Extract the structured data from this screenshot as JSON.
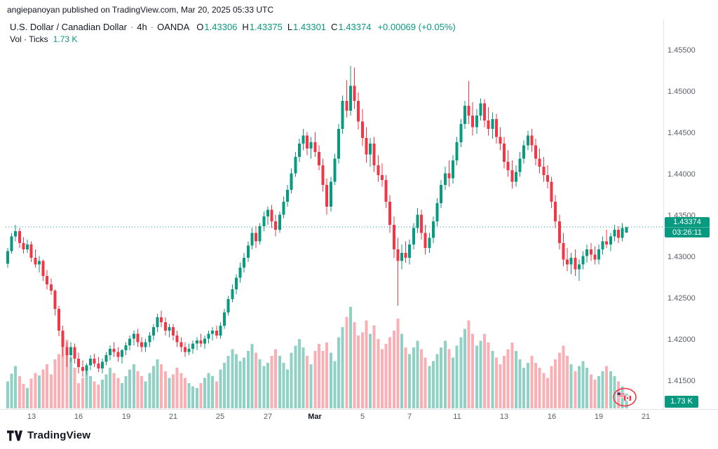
{
  "header": {
    "attribution": "angiepanoyan published on TradingView.com, Mar 20, 2025 05:33 UTC"
  },
  "legend": {
    "symbol": "U.S. Dollar / Canadian Dollar",
    "separator": "·",
    "interval": "4h",
    "exchange": "OANDA",
    "ohlc": {
      "o_label": "O",
      "o": "1.43306",
      "h_label": "H",
      "h": "1.43375",
      "l_label": "L",
      "l": "1.43301",
      "c_label": "C",
      "c": "1.43374"
    },
    "change": "+0.00069 (+0.05%)",
    "vol_label": "Vol · Ticks",
    "vol_value": "1.73 K"
  },
  "badges": {
    "price": "1.43374",
    "countdown": "03:26:11",
    "volume": "1.73 K"
  },
  "footer": {
    "brand": "TradingView"
  },
  "chart_data": {
    "type": "candlestick",
    "title": "U.S. Dollar / Canadian Dollar, 4h, OANDA",
    "legend_note": "Vol · Ticks overlay at bottom pane",
    "current_price": 1.43374,
    "ohlc_current": {
      "open": 1.43306,
      "high": 1.43375,
      "low": 1.43301,
      "close": 1.43374,
      "change": "+0.00069 (+0.05%)"
    },
    "volume_current": "1.73 K",
    "colors": {
      "up": "#089981",
      "down": "#F23645",
      "vol_up": "rgba(8,153,129,0.45)",
      "vol_down": "rgba(242,54,69,0.40)",
      "price_line": "#089981",
      "axis_line": "#E0E3EB"
    },
    "price_axis_labels": [
      {
        "text": "1.45500",
        "price": 1.455
      },
      {
        "text": "1.45000",
        "price": 1.45
      },
      {
        "text": "1.44500",
        "price": 1.445
      },
      {
        "text": "1.44000",
        "price": 1.44
      },
      {
        "text": "1.43500",
        "price": 1.435
      },
      {
        "text": "1.43000",
        "price": 1.43
      },
      {
        "text": "1.42500",
        "price": 1.425
      },
      {
        "text": "1.42000",
        "price": 1.42
      },
      {
        "text": "1.41500",
        "price": 1.415
      }
    ],
    "time_axis_labels": [
      {
        "text": "13",
        "index": 6
      },
      {
        "text": "16",
        "index": 18
      },
      {
        "text": "19",
        "index": 30
      },
      {
        "text": "21",
        "index": 42
      },
      {
        "text": "25",
        "index": 54
      },
      {
        "text": "27",
        "index": 66
      },
      {
        "text": "Mar",
        "index": 78,
        "bold": true
      },
      {
        "text": "5",
        "index": 90
      },
      {
        "text": "7",
        "index": 102
      },
      {
        "text": "11",
        "index": 114
      },
      {
        "text": "13",
        "index": 126
      },
      {
        "text": "16",
        "index": 138
      },
      {
        "text": "19",
        "index": 150
      },
      {
        "text": "21",
        "index": 162
      }
    ],
    "candles": [
      [
        1.4293,
        1.4312,
        1.4288,
        1.4308
      ],
      [
        1.4308,
        1.433,
        1.4305,
        1.4326
      ],
      [
        1.4326,
        1.434,
        1.432,
        1.4332
      ],
      [
        1.4332,
        1.4336,
        1.4312,
        1.4318
      ],
      [
        1.4318,
        1.4325,
        1.4305,
        1.431
      ],
      [
        1.431,
        1.4322,
        1.4306,
        1.4316
      ],
      [
        1.4316,
        1.432,
        1.4295,
        1.43
      ],
      [
        1.43,
        1.431,
        1.4288,
        1.4292
      ],
      [
        1.4292,
        1.4302,
        1.4282,
        1.4296
      ],
      [
        1.4296,
        1.4298,
        1.4272,
        1.4278
      ],
      [
        1.4278,
        1.4285,
        1.4262,
        1.4268
      ],
      [
        1.4268,
        1.4275,
        1.4255,
        1.426
      ],
      [
        1.426,
        1.4262,
        1.423,
        1.4238
      ],
      [
        1.4238,
        1.4242,
        1.4205,
        1.4212
      ],
      [
        1.4212,
        1.4218,
        1.418,
        1.4192
      ],
      [
        1.4192,
        1.4198,
        1.4168,
        1.4182
      ],
      [
        1.4182,
        1.4198,
        1.4174,
        1.4192
      ],
      [
        1.4192,
        1.4196,
        1.4172,
        1.4178
      ],
      [
        1.4178,
        1.4185,
        1.416,
        1.4168
      ],
      [
        1.4168,
        1.4176,
        1.4156,
        1.4163
      ],
      [
        1.4163,
        1.4172,
        1.4158,
        1.417
      ],
      [
        1.417,
        1.4182,
        1.4164,
        1.4178
      ],
      [
        1.4178,
        1.4184,
        1.4168,
        1.4172
      ],
      [
        1.4172,
        1.418,
        1.4162,
        1.4166
      ],
      [
        1.4166,
        1.4178,
        1.416,
        1.4174
      ],
      [
        1.4174,
        1.4186,
        1.417,
        1.4182
      ],
      [
        1.4182,
        1.4194,
        1.4176,
        1.419
      ],
      [
        1.419,
        1.4198,
        1.418,
        1.4186
      ],
      [
        1.4186,
        1.4192,
        1.4174,
        1.418
      ],
      [
        1.418,
        1.419,
        1.4172,
        1.4188
      ],
      [
        1.4188,
        1.4198,
        1.4182,
        1.4194
      ],
      [
        1.4194,
        1.4206,
        1.4188,
        1.4202
      ],
      [
        1.4202,
        1.4212,
        1.4194,
        1.4208
      ],
      [
        1.4208,
        1.4214,
        1.4192,
        1.4198
      ],
      [
        1.4198,
        1.4204,
        1.4186,
        1.4192
      ],
      [
        1.4192,
        1.4202,
        1.4186,
        1.4198
      ],
      [
        1.4198,
        1.421,
        1.4192,
        1.4206
      ],
      [
        1.4206,
        1.422,
        1.42,
        1.4216
      ],
      [
        1.4216,
        1.4232,
        1.421,
        1.4228
      ],
      [
        1.4228,
        1.4236,
        1.4216,
        1.4222
      ],
      [
        1.4222,
        1.4228,
        1.4206,
        1.4212
      ],
      [
        1.4212,
        1.422,
        1.4204,
        1.4216
      ],
      [
        1.4216,
        1.422,
        1.42,
        1.4206
      ],
      [
        1.4206,
        1.4212,
        1.4192,
        1.4198
      ],
      [
        1.4198,
        1.4204,
        1.4186,
        1.4192
      ],
      [
        1.4192,
        1.4198,
        1.418,
        1.4186
      ],
      [
        1.4186,
        1.4196,
        1.4182,
        1.419
      ],
      [
        1.419,
        1.42,
        1.4184,
        1.4196
      ],
      [
        1.4196,
        1.4204,
        1.4188,
        1.42
      ],
      [
        1.42,
        1.4208,
        1.4192,
        1.4196
      ],
      [
        1.4196,
        1.4206,
        1.419,
        1.4202
      ],
      [
        1.4202,
        1.4212,
        1.4196,
        1.4208
      ],
      [
        1.4208,
        1.4216,
        1.42,
        1.4212
      ],
      [
        1.4212,
        1.4218,
        1.4202,
        1.4206
      ],
      [
        1.4206,
        1.4222,
        1.4202,
        1.4218
      ],
      [
        1.4218,
        1.4238,
        1.4214,
        1.4234
      ],
      [
        1.4234,
        1.4254,
        1.423,
        1.425
      ],
      [
        1.425,
        1.4268,
        1.4246,
        1.4262
      ],
      [
        1.4262,
        1.428,
        1.4256,
        1.4276
      ],
      [
        1.4276,
        1.4294,
        1.427,
        1.4288
      ],
      [
        1.4288,
        1.4306,
        1.4282,
        1.43
      ],
      [
        1.43,
        1.432,
        1.4295,
        1.4315
      ],
      [
        1.4315,
        1.4336,
        1.431,
        1.433
      ],
      [
        1.433,
        1.4338,
        1.4312,
        1.432
      ],
      [
        1.432,
        1.4342,
        1.4316,
        1.4338
      ],
      [
        1.4338,
        1.4356,
        1.4332,
        1.435
      ],
      [
        1.435,
        1.4362,
        1.434,
        1.4358
      ],
      [
        1.4358,
        1.4364,
        1.4336,
        1.4344
      ],
      [
        1.4344,
        1.4352,
        1.4326,
        1.4334
      ],
      [
        1.4334,
        1.4356,
        1.433,
        1.4352
      ],
      [
        1.4352,
        1.4374,
        1.4348,
        1.4368
      ],
      [
        1.4368,
        1.4388,
        1.4362,
        1.4382
      ],
      [
        1.4382,
        1.4408,
        1.4378,
        1.4402
      ],
      [
        1.4402,
        1.4428,
        1.4398,
        1.4422
      ],
      [
        1.4422,
        1.4444,
        1.4416,
        1.4438
      ],
      [
        1.4438,
        1.4456,
        1.443,
        1.4448
      ],
      [
        1.4448,
        1.4452,
        1.4424,
        1.4432
      ],
      [
        1.4432,
        1.4446,
        1.442,
        1.444
      ],
      [
        1.444,
        1.4452,
        1.4422,
        1.4428
      ],
      [
        1.4428,
        1.4436,
        1.4406,
        1.4412
      ],
      [
        1.4412,
        1.442,
        1.438,
        1.4388
      ],
      [
        1.4388,
        1.4396,
        1.4352,
        1.4362
      ],
      [
        1.4362,
        1.4398,
        1.4356,
        1.4392
      ],
      [
        1.4392,
        1.4426,
        1.4388,
        1.442
      ],
      [
        1.442,
        1.4462,
        1.4414,
        1.4456
      ],
      [
        1.4456,
        1.4496,
        1.445,
        1.449
      ],
      [
        1.449,
        1.4515,
        1.447,
        1.4478
      ],
      [
        1.4478,
        1.4532,
        1.4472,
        1.4508
      ],
      [
        1.4508,
        1.453,
        1.448,
        1.449
      ],
      [
        1.449,
        1.45,
        1.4455,
        1.4465
      ],
      [
        1.4465,
        1.448,
        1.4435,
        1.4445
      ],
      [
        1.4445,
        1.4458,
        1.4415,
        1.4425
      ],
      [
        1.4425,
        1.4445,
        1.441,
        1.4438
      ],
      [
        1.4438,
        1.4446,
        1.4404,
        1.4412
      ],
      [
        1.4412,
        1.4424,
        1.4392,
        1.44
      ],
      [
        1.44,
        1.4414,
        1.4386,
        1.4394
      ],
      [
        1.4394,
        1.44,
        1.436,
        1.4368
      ],
      [
        1.4368,
        1.4376,
        1.433,
        1.434
      ],
      [
        1.434,
        1.435,
        1.43,
        1.431
      ],
      [
        1.431,
        1.4324,
        1.4242,
        1.4296
      ],
      [
        1.4296,
        1.4316,
        1.4286,
        1.4306
      ],
      [
        1.4306,
        1.432,
        1.4294,
        1.43
      ],
      [
        1.43,
        1.4322,
        1.4292,
        1.4316
      ],
      [
        1.4316,
        1.4342,
        1.431,
        1.4336
      ],
      [
        1.4336,
        1.436,
        1.433,
        1.4352
      ],
      [
        1.4352,
        1.4358,
        1.4322,
        1.433
      ],
      [
        1.433,
        1.434,
        1.4304,
        1.4312
      ],
      [
        1.4312,
        1.433,
        1.4306,
        1.4324
      ],
      [
        1.4324,
        1.435,
        1.4318,
        1.4344
      ],
      [
        1.4344,
        1.4372,
        1.4338,
        1.4366
      ],
      [
        1.4366,
        1.4394,
        1.436,
        1.4388
      ],
      [
        1.4388,
        1.441,
        1.4382,
        1.4402
      ],
      [
        1.4402,
        1.4418,
        1.4386,
        1.4396
      ],
      [
        1.4396,
        1.4424,
        1.439,
        1.4418
      ],
      [
        1.4418,
        1.4446,
        1.4412,
        1.444
      ],
      [
        1.444,
        1.4468,
        1.4434,
        1.4462
      ],
      [
        1.4462,
        1.449,
        1.4456,
        1.4484
      ],
      [
        1.4484,
        1.4514,
        1.4462,
        1.4472
      ],
      [
        1.4472,
        1.4488,
        1.4448,
        1.4458
      ],
      [
        1.4458,
        1.448,
        1.445,
        1.4472
      ],
      [
        1.4472,
        1.4493,
        1.4466,
        1.4487
      ],
      [
        1.4487,
        1.4492,
        1.4458,
        1.4466
      ],
      [
        1.4466,
        1.4482,
        1.4448,
        1.4456
      ],
      [
        1.4456,
        1.4476,
        1.4444,
        1.4468
      ],
      [
        1.4468,
        1.4474,
        1.4438,
        1.4446
      ],
      [
        1.4446,
        1.4458,
        1.443,
        1.4438
      ],
      [
        1.4438,
        1.4446,
        1.4408,
        1.4416
      ],
      [
        1.4416,
        1.443,
        1.4398,
        1.4406
      ],
      [
        1.4406,
        1.4418,
        1.4384,
        1.4392
      ],
      [
        1.4392,
        1.4412,
        1.4386,
        1.4404
      ],
      [
        1.4404,
        1.4428,
        1.4398,
        1.442
      ],
      [
        1.442,
        1.4442,
        1.4414,
        1.4436
      ],
      [
        1.4436,
        1.4454,
        1.443,
        1.4448
      ],
      [
        1.4448,
        1.4456,
        1.4428,
        1.4436
      ],
      [
        1.4436,
        1.4444,
        1.4412,
        1.442
      ],
      [
        1.442,
        1.4432,
        1.4402,
        1.441
      ],
      [
        1.441,
        1.4422,
        1.4392,
        1.44
      ],
      [
        1.44,
        1.4412,
        1.4384,
        1.4392
      ],
      [
        1.4392,
        1.4398,
        1.436,
        1.4368
      ],
      [
        1.4368,
        1.4376,
        1.4336,
        1.4344
      ],
      [
        1.4344,
        1.4352,
        1.431,
        1.4318
      ],
      [
        1.4318,
        1.433,
        1.429,
        1.4298
      ],
      [
        1.4298,
        1.4312,
        1.4284,
        1.4292
      ],
      [
        1.4292,
        1.4306,
        1.428,
        1.43
      ],
      [
        1.43,
        1.431,
        1.4278,
        1.4286
      ],
      [
        1.4286,
        1.4298,
        1.4272,
        1.4292
      ],
      [
        1.4292,
        1.4308,
        1.4286,
        1.4302
      ],
      [
        1.4302,
        1.4316,
        1.4294,
        1.431
      ],
      [
        1.431,
        1.4318,
        1.4296,
        1.4304
      ],
      [
        1.4304,
        1.4314,
        1.4292,
        1.4298
      ],
      [
        1.4298,
        1.4316,
        1.4292,
        1.431
      ],
      [
        1.431,
        1.4326,
        1.4304,
        1.432
      ],
      [
        1.432,
        1.4334,
        1.4312,
        1.4316
      ],
      [
        1.4316,
        1.433,
        1.4308,
        1.4326
      ],
      [
        1.4326,
        1.434,
        1.432,
        1.4334
      ],
      [
        1.4334,
        1.4338,
        1.4318,
        1.4324
      ],
      [
        1.4324,
        1.4342,
        1.432,
        1.4336
      ],
      [
        1.43306,
        1.43375,
        1.43301,
        1.43374
      ]
    ],
    "volumes": [
      3.2,
      4.1,
      5.0,
      3.8,
      2.9,
      2.4,
      3.5,
      4.2,
      3.9,
      4.6,
      5.2,
      4.0,
      5.8,
      6.4,
      7.2,
      8.1,
      6.0,
      4.8,
      3.0,
      3.6,
      4.4,
      3.8,
      3.2,
      2.8,
      3.4,
      4.0,
      4.8,
      4.2,
      3.6,
      3.0,
      3.8,
      4.6,
      5.2,
      4.4,
      3.8,
      3.2,
      4.2,
      5.0,
      5.8,
      5.2,
      4.4,
      3.6,
      4.0,
      4.8,
      4.2,
      3.6,
      3.0,
      2.6,
      2.4,
      3.0,
      3.6,
      4.2,
      3.8,
      3.2,
      4.6,
      5.4,
      6.2,
      7.0,
      6.4,
      5.6,
      6.0,
      6.8,
      7.6,
      6.6,
      5.8,
      5.0,
      5.4,
      6.2,
      7.0,
      6.2,
      5.4,
      4.6,
      6.6,
      7.4,
      8.2,
      7.2,
      6.2,
      5.2,
      6.8,
      7.6,
      6.8,
      7.8,
      6.6,
      5.6,
      8.4,
      9.6,
      10.8,
      12.0,
      10.2,
      8.6,
      9.0,
      10.4,
      8.8,
      9.8,
      8.2,
      7.0,
      7.6,
      8.4,
      9.2,
      10.6,
      8.8,
      7.2,
      6.4,
      7.2,
      8.0,
      7.0,
      6.0,
      5.0,
      5.6,
      6.4,
      7.2,
      8.0,
      7.0,
      6.0,
      7.4,
      8.4,
      9.4,
      10.4,
      8.8,
      7.4,
      8.0,
      8.8,
      7.8,
      6.8,
      6.0,
      5.2,
      6.2,
      7.0,
      7.8,
      6.8,
      5.8,
      4.8,
      5.4,
      6.2,
      5.4,
      4.8,
      4.2,
      3.6,
      5.0,
      5.8,
      6.6,
      7.4,
      6.2,
      5.2,
      4.4,
      5.0,
      5.6,
      4.8,
      4.0,
      3.4,
      3.8,
      4.4,
      5.0,
      4.4,
      3.8,
      3.2,
      2.6,
      1.73
    ]
  }
}
